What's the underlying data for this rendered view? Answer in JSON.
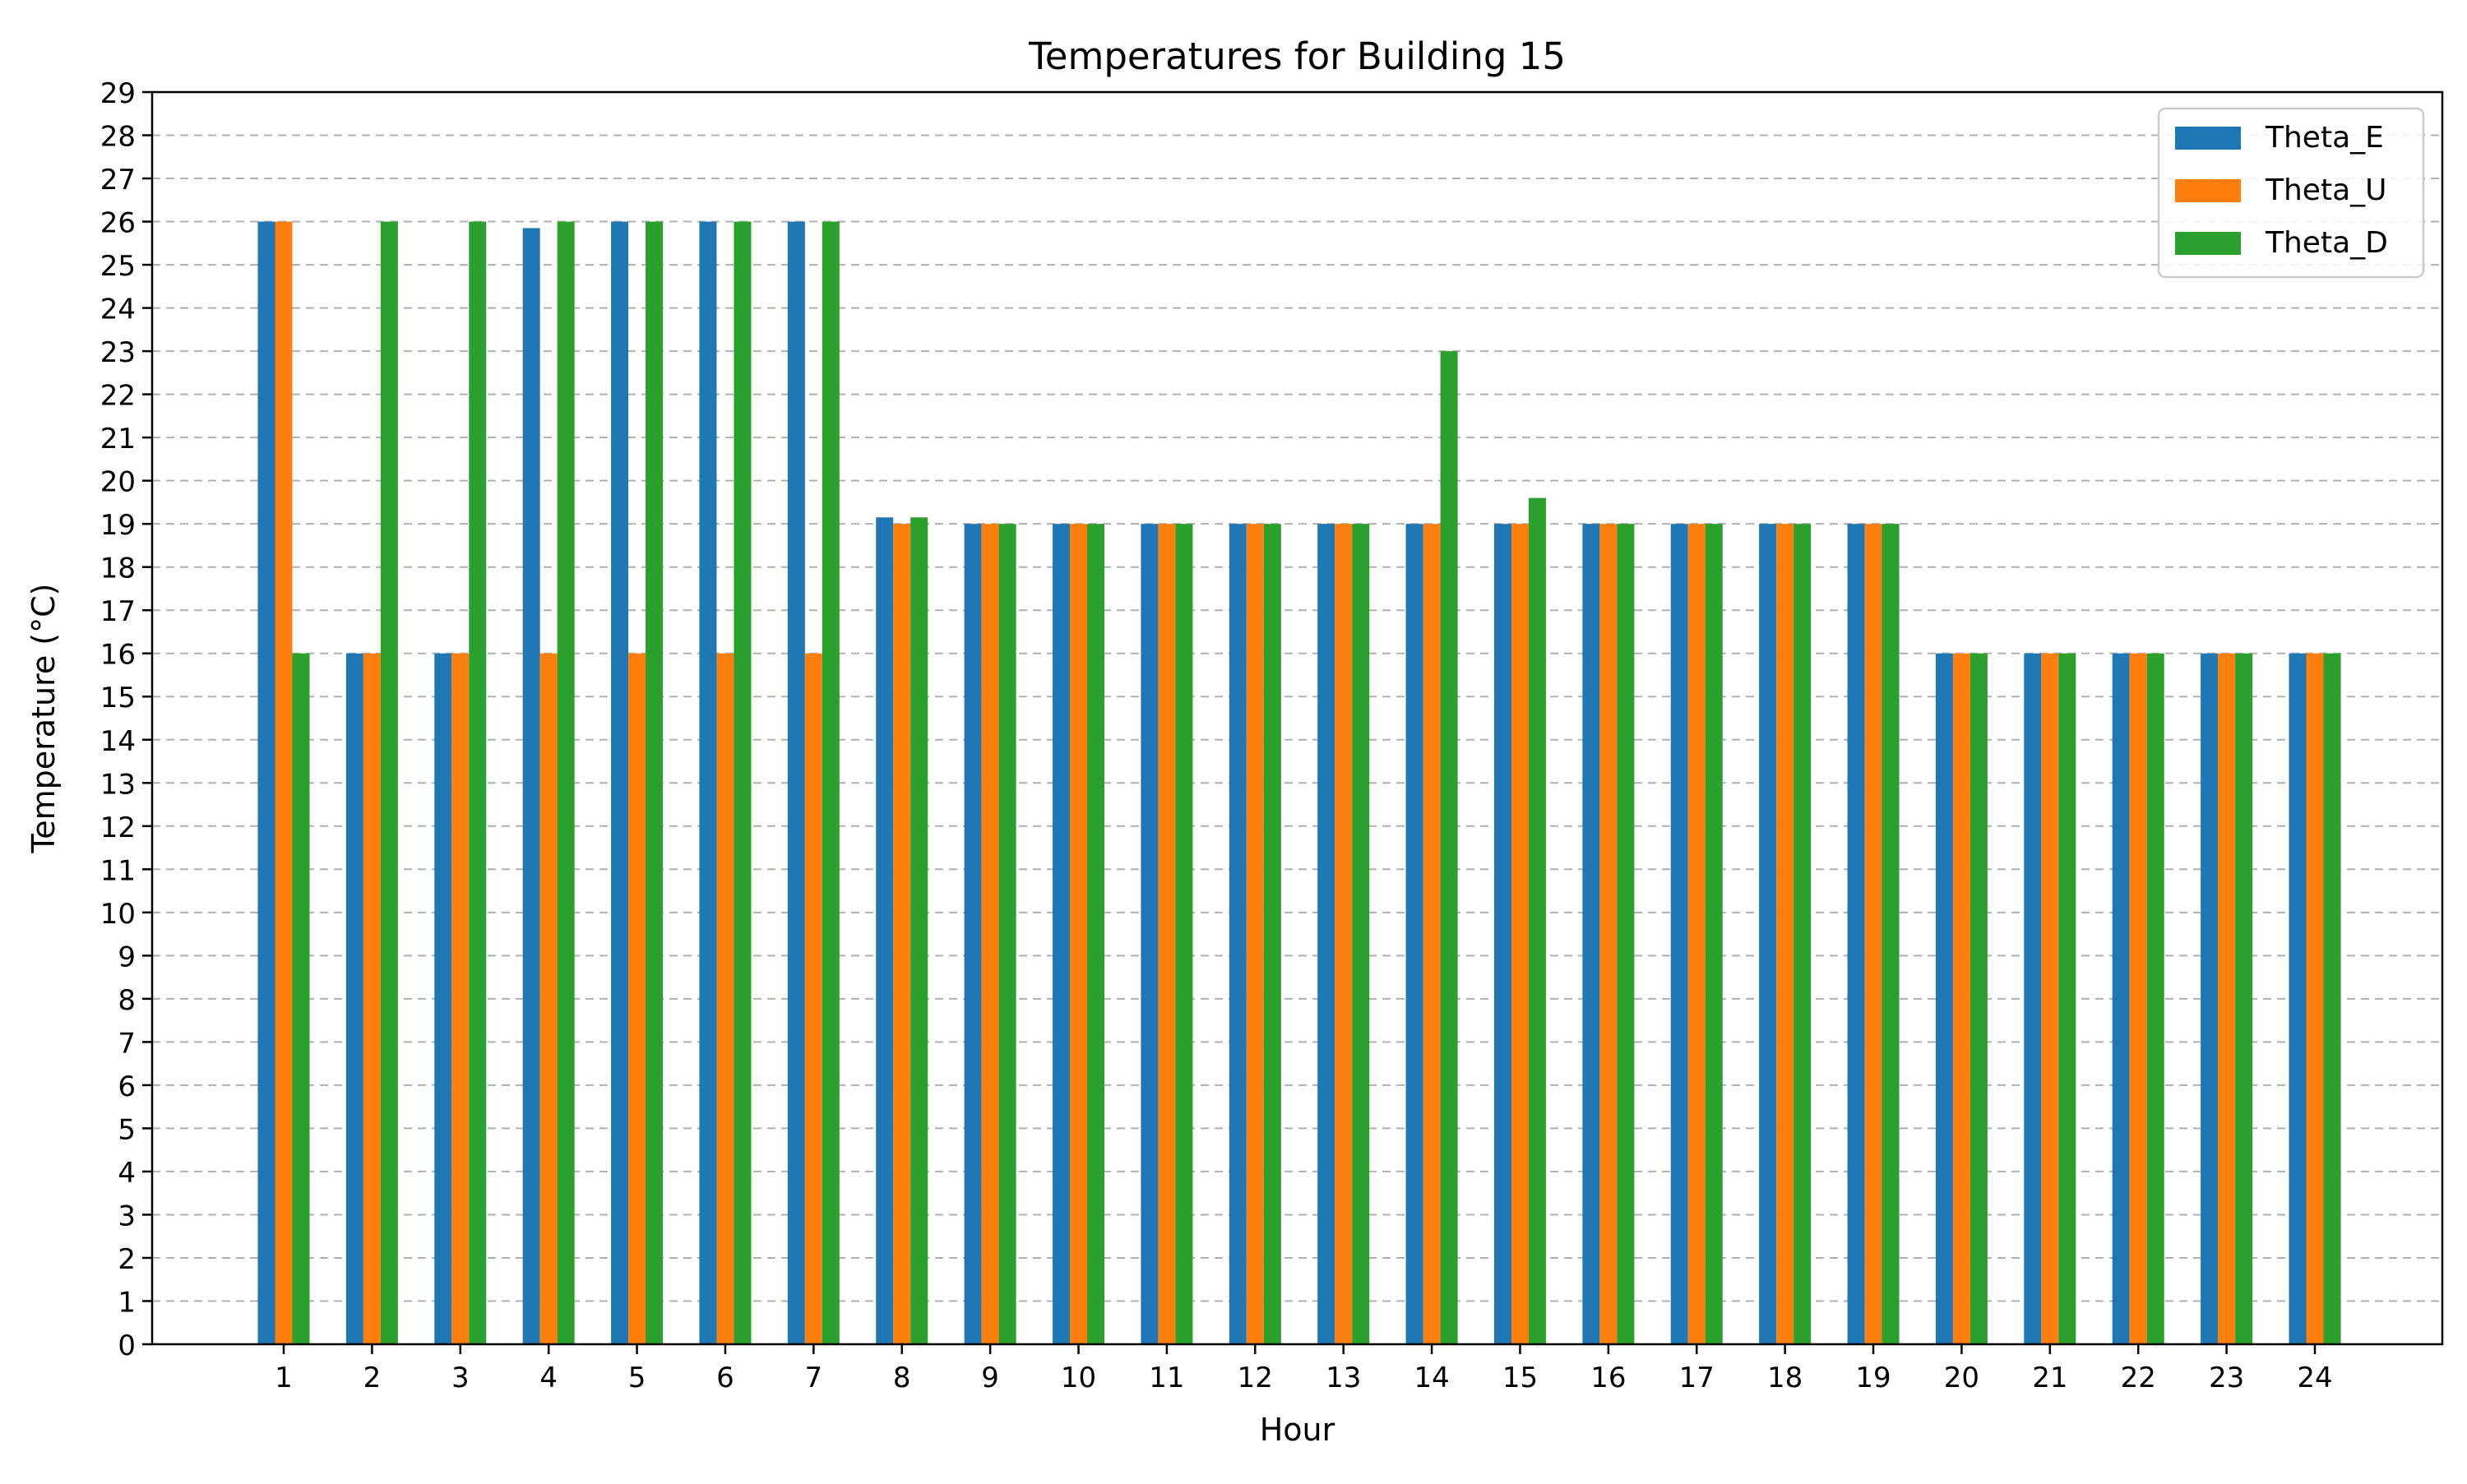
{
  "chart_data": {
    "type": "bar",
    "title": "Temperatures for Building 15",
    "xlabel": "Hour",
    "ylabel": "Temperature (°C)",
    "categories": [
      "1",
      "2",
      "3",
      "4",
      "5",
      "6",
      "7",
      "8",
      "9",
      "10",
      "11",
      "12",
      "13",
      "14",
      "15",
      "16",
      "17",
      "18",
      "19",
      "20",
      "21",
      "22",
      "23",
      "24"
    ],
    "ylim": [
      0,
      29
    ],
    "yticks": [
      0,
      1,
      2,
      3,
      4,
      5,
      6,
      7,
      8,
      9,
      10,
      11,
      12,
      13,
      14,
      15,
      16,
      17,
      18,
      19,
      20,
      21,
      22,
      23,
      24,
      25,
      26,
      27,
      28,
      29
    ],
    "grid": "horizontal dashed",
    "legend_position": "top-right",
    "series": [
      {
        "name": "Theta_E",
        "color": "#1f77b4",
        "values": [
          26,
          16,
          16,
          25.85,
          26,
          26,
          26,
          19.15,
          19,
          19,
          19,
          19,
          19,
          19,
          19,
          19,
          19,
          19,
          19,
          16,
          16,
          16,
          16,
          16
        ]
      },
      {
        "name": "Theta_U",
        "color": "#ff7f0e",
        "values": [
          26,
          16,
          16,
          16,
          16,
          16,
          16,
          19,
          19,
          19,
          19,
          19,
          19,
          19,
          19,
          19,
          19,
          19,
          19,
          16,
          16,
          16,
          16,
          16
        ]
      },
      {
        "name": "Theta_D",
        "color": "#2ca02c",
        "values": [
          16,
          26,
          26,
          26,
          26,
          26,
          26,
          19.15,
          19,
          19,
          19,
          19,
          19,
          23,
          19.6,
          19,
          19,
          19,
          19,
          16,
          16,
          16,
          16,
          16
        ]
      }
    ]
  }
}
